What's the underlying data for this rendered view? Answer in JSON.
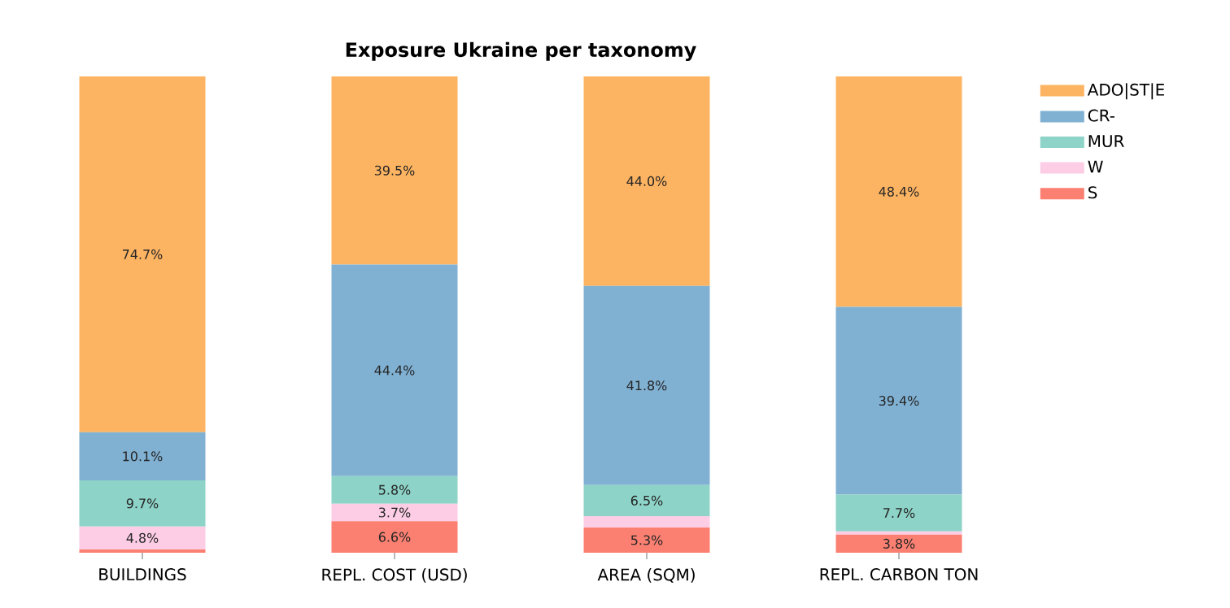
{
  "chart_data": {
    "type": "bar",
    "stacked": true,
    "title": "Exposure Ukraine per taxonomy",
    "categories": [
      "BUILDINGS",
      "REPL. COST (USD)",
      "AREA (SQM)",
      "REPL. CARBON TON"
    ],
    "series": [
      {
        "name": "S",
        "color": "#fb8072",
        "values": [
          0.7,
          6.6,
          5.3,
          3.8
        ],
        "value_labels": [
          null,
          "6.6%",
          "5.3%",
          "3.8%"
        ]
      },
      {
        "name": "W",
        "color": "#fccde5",
        "values": [
          4.8,
          3.7,
          2.4,
          0.7
        ],
        "value_labels": [
          "4.8%",
          "3.7%",
          null,
          null
        ]
      },
      {
        "name": "MUR",
        "color": "#8dd3c7",
        "values": [
          9.7,
          5.8,
          6.5,
          7.7
        ],
        "value_labels": [
          "9.7%",
          "5.8%",
          "6.5%",
          "7.7%"
        ]
      },
      {
        "name": "CR-",
        "color": "#80b1d3",
        "values": [
          10.1,
          44.4,
          41.8,
          39.4
        ],
        "value_labels": [
          "10.1%",
          "44.4%",
          "41.8%",
          "39.4%"
        ]
      },
      {
        "name": "ADO|ST|E",
        "color": "#fdb462",
        "values": [
          74.7,
          39.5,
          44.0,
          48.4
        ],
        "value_labels": [
          "74.7%",
          "39.5%",
          "44.0%",
          "48.4%"
        ]
      }
    ],
    "legend": "top right",
    "tick_labels": "x"
  }
}
